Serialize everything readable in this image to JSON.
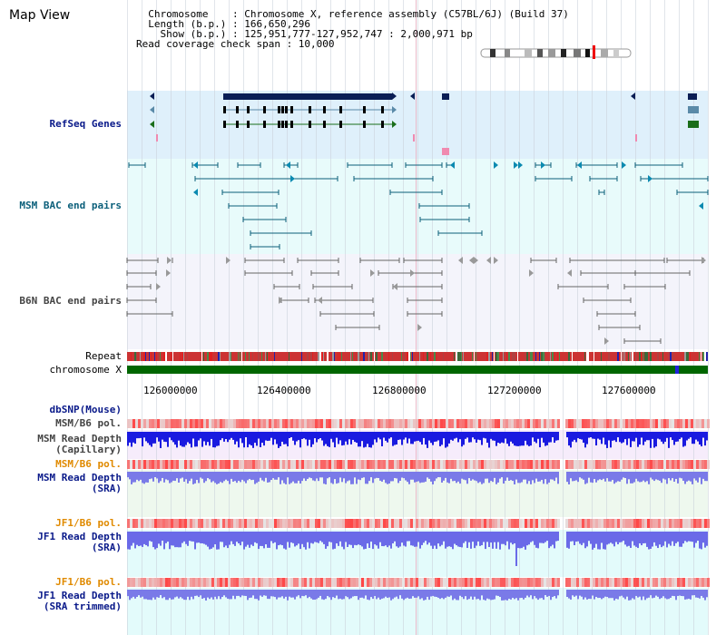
{
  "header": {
    "title": "Map View",
    "info_lines": [
      "  Chromosome    : Chromosome X, reference assembly (C57BL/6J) (Build 37)",
      "  Length (b.p.) : 166,650,296",
      "    Show (b.p.) : 125,951,777-127,952,747 : 2,000,971 bp",
      "Read coverage check span : 10,000"
    ]
  },
  "tracks": {
    "refseq": "RefSeq Genes",
    "msm_bac": "MSM BAC end pairs",
    "b6n_bac": "B6N BAC end pairs",
    "repeat": "Repeat",
    "chromosome": "chromosome X",
    "dbsnp": "dbSNP(Mouse)",
    "msm_b6_pol_1": "MSM/B6 pol.",
    "msm_read_cap": "MSM Read Depth\n(Capillary)",
    "msm_b6_pol_2": "MSM/B6 pol.",
    "msm_read_sra": "MSM Read Depth\n(SRA)",
    "jf1_b6_pol_1": "JF1/B6 pol.",
    "jf1_read_sra": "JF1 Read Depth\n(SRA)",
    "jf1_b6_pol_2": "JF1/B6 pol.",
    "jf1_read_trim": "JF1 Read Depth\n(SRA trimmed)"
  },
  "axis": {
    "ticks": [
      "126000000",
      "126400000",
      "126800000",
      "127200000",
      "127600000"
    ]
  },
  "colors": {
    "refseq_bg": "#dff0fb",
    "msm_bg": "#e8fbfb",
    "b6n_bg": "#f4f4fb",
    "chromosome": "#006600",
    "read_blue": "#1a1ae0",
    "pol_red": "#ee3333"
  }
}
